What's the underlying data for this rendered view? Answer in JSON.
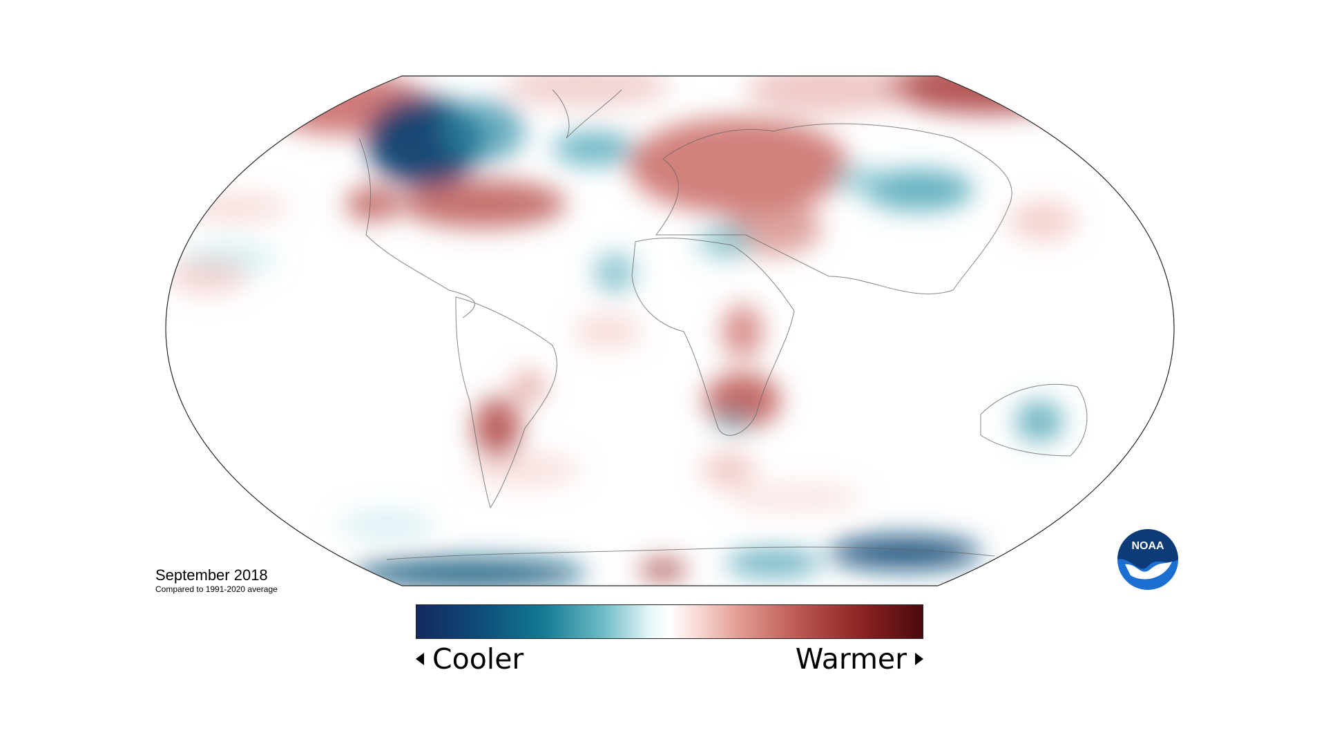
{
  "map": {
    "title": "September 2018",
    "subtitle": "Compared to 1991-2020 average",
    "projection": "robinson"
  },
  "legend": {
    "low_label": "Cooler",
    "high_label": "Warmer",
    "colors": [
      "#14295e",
      "#0e5a7d",
      "#127a92",
      "#54aab8",
      "#b9e3e8",
      "#ffffff",
      "#f6c5c2",
      "#de8a82",
      "#b8504a",
      "#8c2223",
      "#4a0a0d"
    ]
  },
  "logo": {
    "text": "NOAA"
  }
}
